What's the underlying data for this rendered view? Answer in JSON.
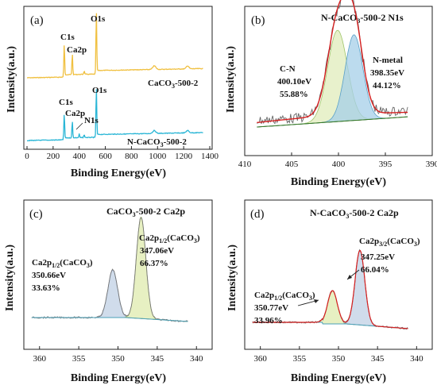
{
  "chart_data": [
    {
      "panel": "(a)",
      "type": "line",
      "xlabel": "Binding Energy(eV)",
      "ylabel": "Intensity(a.u.)",
      "xlim": [
        0,
        1400
      ],
      "x_ticks": [
        "0",
        "200",
        "400",
        "600",
        "800",
        "1000",
        "1200",
        "1400"
      ],
      "series": [
        {
          "name": "CaCO3-500-2",
          "display": [
            "CaCO",
            "3",
            "-500-2"
          ],
          "color": "#f0c040",
          "peaks": [
            {
              "label": "C1s",
              "x": 285
            },
            {
              "label": "Ca2p",
              "x": 347
            },
            {
              "label": "O1s",
              "x": 531
            }
          ]
        },
        {
          "name": "N-CaCO3-500-2",
          "display": [
            "N-CaCO",
            "3",
            "-500-2"
          ],
          "color": "#2ab6d6",
          "peaks": [
            {
              "label": "C1s",
              "x": 285
            },
            {
              "label": "Ca2p",
              "x": 347
            },
            {
              "label": "N1s",
              "x": 400
            },
            {
              "label": "O1s",
              "x": 531
            }
          ]
        }
      ]
    },
    {
      "panel": "(b)",
      "type": "line",
      "title": [
        "N-CaCO",
        "3",
        "-500-2   N1s"
      ],
      "xlabel": "Binding Energy(eV)",
      "ylabel": "Intensity(a.u.)",
      "xlim": [
        410,
        390
      ],
      "x_ticks": [
        "410",
        "405",
        "400",
        "395",
        "390"
      ],
      "components": [
        {
          "label": "C-N",
          "center": 400.1,
          "center_text": "400.10eV",
          "percent": "55.88%",
          "color": "#d3e6a0"
        },
        {
          "label": "N-metal",
          "center": 398.35,
          "center_text": "398.35eV",
          "percent": "44.12%",
          "color": "#a6cfe8"
        }
      ],
      "fit_color": "#d62020"
    },
    {
      "panel": "(c)",
      "type": "line",
      "title": [
        "CaCO",
        "3",
        "-500-2     Ca2p"
      ],
      "xlabel": "Binding Energy(eV)",
      "ylabel": "Intensity(a.u.)",
      "xlim": [
        362,
        338
      ],
      "x_ticks": [
        "360",
        "355",
        "350",
        "345",
        "340"
      ],
      "components": [
        {
          "label": [
            "Ca2p",
            "1/2",
            "(CaCO",
            "3",
            ")"
          ],
          "center": 350.66,
          "center_text": "350.66eV",
          "percent": "33.63%",
          "color": "#b0c4de"
        },
        {
          "label": [
            "Ca2p",
            "1/2",
            "(CaCO",
            "3",
            ")"
          ],
          "center": 347.06,
          "center_text": "347.06eV",
          "percent": "66.37%",
          "color": "#dde9a8"
        }
      ]
    },
    {
      "panel": "(d)",
      "type": "line",
      "title": [
        "N-CaCO",
        "3",
        "-500-2     Ca2p"
      ],
      "xlabel": "Binding Energy(eV)",
      "ylabel": "Intensity(a.u.)",
      "xlim": [
        362,
        338
      ],
      "x_ticks": [
        "360",
        "355",
        "350",
        "345",
        "340"
      ],
      "components": [
        {
          "label": [
            "Ca2p",
            "1/2",
            "(CaCO",
            "3",
            ")"
          ],
          "center": 350.77,
          "center_text": "350.77eV",
          "percent": "33.96%",
          "color": "#dde9a8"
        },
        {
          "label": [
            "Ca2p",
            "3/2",
            "(CaCO",
            "3",
            ")"
          ],
          "center": 347.25,
          "center_text": "347.25eV",
          "percent": "66.04%",
          "color": "#b0c4de"
        }
      ],
      "fit_color": "#d62020"
    }
  ]
}
